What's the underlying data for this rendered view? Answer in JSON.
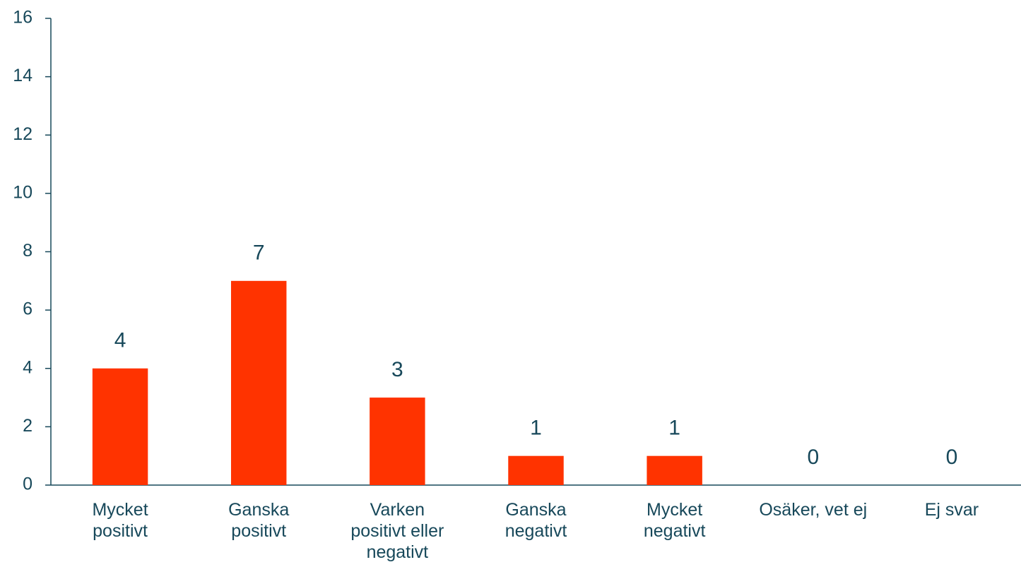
{
  "chart_data": {
    "type": "bar",
    "categories": [
      "Mycket positivt",
      "Ganska positivt",
      "Varken positivt eller negativt",
      "Ganska negativt",
      "Mycket negativt",
      "Osäker, vet ej",
      "Ej svar"
    ],
    "values": [
      4,
      7,
      3,
      1,
      1,
      0,
      0
    ],
    "color": "#ff3300",
    "ylim": [
      0,
      16
    ],
    "yticks": [
      0,
      2,
      4,
      6,
      8,
      10,
      12,
      14,
      16
    ],
    "grid": false
  }
}
